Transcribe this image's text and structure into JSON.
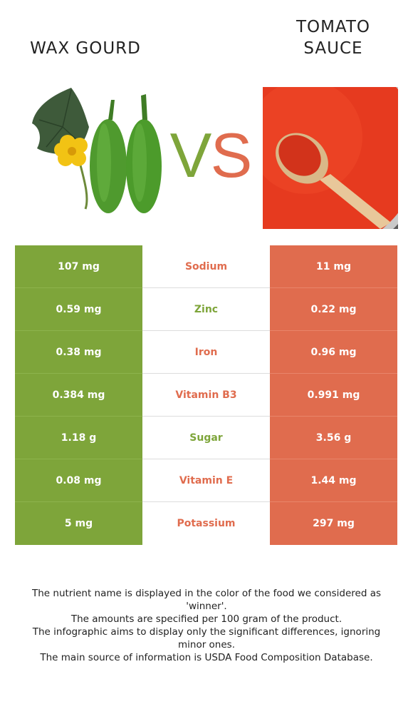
{
  "header": {
    "left_title": "WAX GOURD",
    "right_title_line1": "TOMATO",
    "right_title_line2": "SAUCE",
    "vs_v": "V",
    "vs_s": "S"
  },
  "colors": {
    "left_food": "#7ea53a",
    "right_food": "#e06c4e"
  },
  "rows": [
    {
      "nutrient": "Sodium",
      "left": "107 mg",
      "right": "11 mg",
      "winner": "right"
    },
    {
      "nutrient": "Zinc",
      "left": "0.59 mg",
      "right": "0.22 mg",
      "winner": "left"
    },
    {
      "nutrient": "Iron",
      "left": "0.38 mg",
      "right": "0.96 mg",
      "winner": "right"
    },
    {
      "nutrient": "Vitamin B3",
      "left": "0.384 mg",
      "right": "0.991 mg",
      "winner": "right"
    },
    {
      "nutrient": "Sugar",
      "left": "1.18 g",
      "right": "3.56 g",
      "winner": "left"
    },
    {
      "nutrient": "Vitamin E",
      "left": "0.08 mg",
      "right": "1.44 mg",
      "winner": "right"
    },
    {
      "nutrient": "Potassium",
      "left": "5 mg",
      "right": "297 mg",
      "winner": "right"
    }
  ],
  "footer": {
    "line1": "The nutrient name is displayed in the color of the food we considered as 'winner'.",
    "line2": "The amounts are specified per 100 gram of the product.",
    "line3": "The infographic aims to display only the significant differences, ignoring minor ones.",
    "line4": "The main source of information is USDA Food Composition Database."
  }
}
